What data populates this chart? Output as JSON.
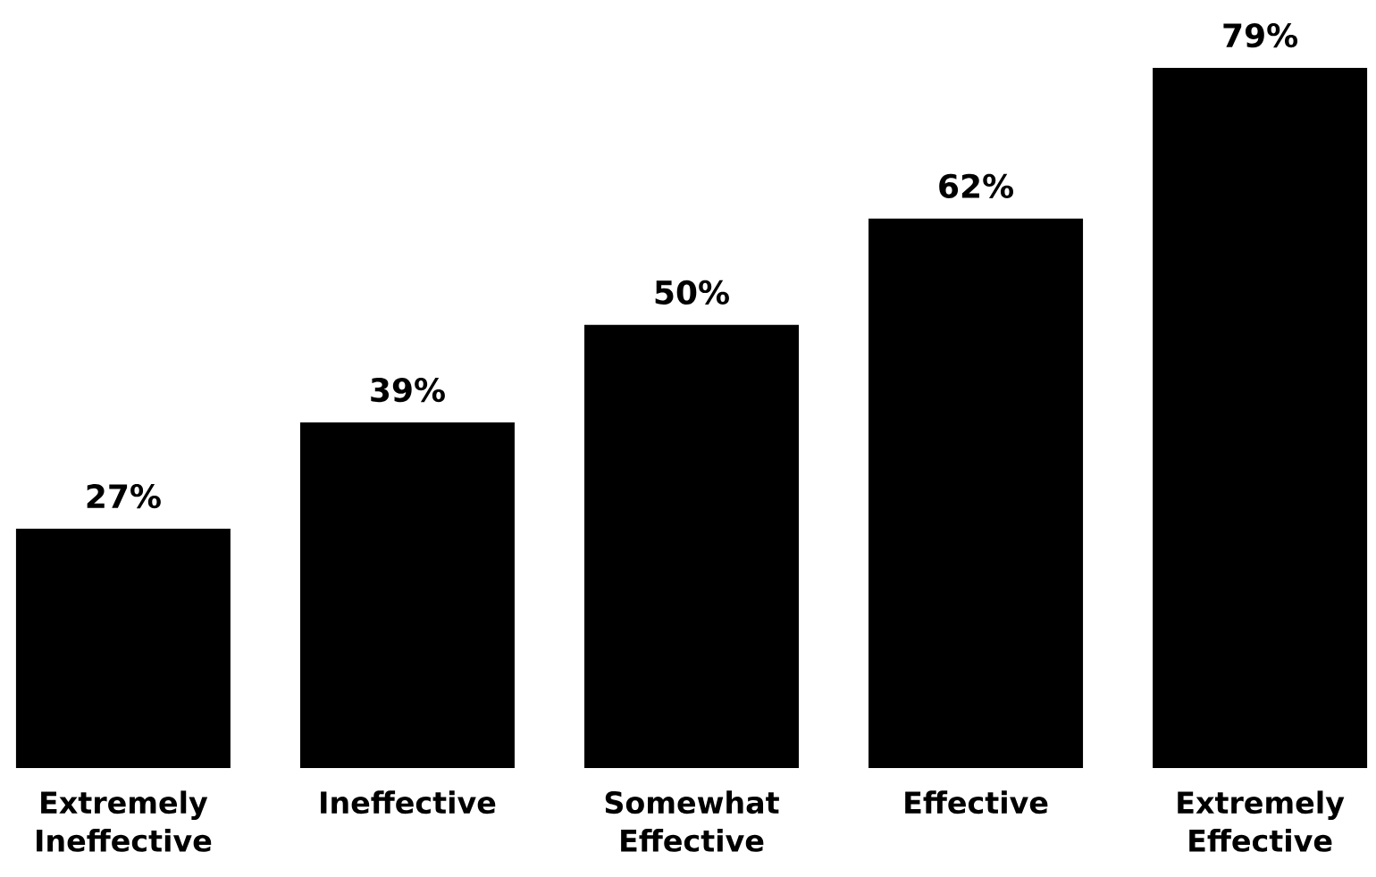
{
  "chart_data": {
    "type": "bar",
    "categories": [
      "Extremely Ineffective",
      "Ineffective",
      "Somewhat Effective",
      "Effective",
      "Extremely Effective"
    ],
    "values": [
      27,
      39,
      50,
      62,
      79
    ],
    "value_labels": [
      "27%",
      "39%",
      "50%",
      "62%",
      "79%"
    ],
    "color": "#000000"
  }
}
